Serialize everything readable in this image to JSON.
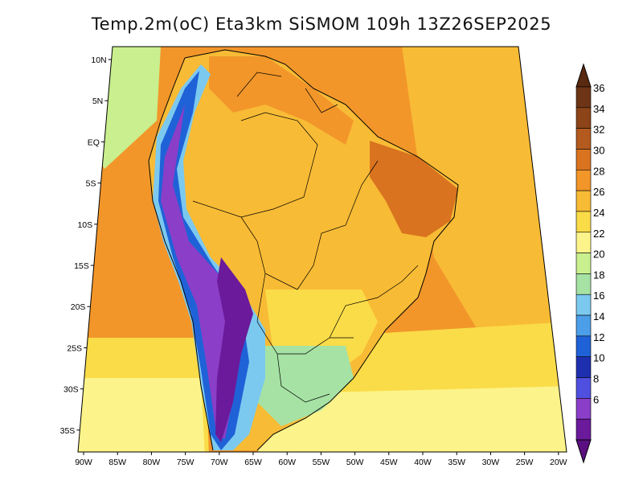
{
  "title": "Temp.2m(oC) Eta3km SiSMOM 109h 13Z26SEP2025",
  "lat_labels": [
    "10N",
    "5N",
    "EQ",
    "5S",
    "10S",
    "15S",
    "20S",
    "25S",
    "30S",
    "35S"
  ],
  "lon_labels": [
    "90W",
    "85W",
    "80W",
    "75W",
    "70W",
    "65W",
    "60W",
    "55W",
    "50W",
    "45W",
    "40W",
    "35W",
    "30W",
    "25W",
    "20W"
  ],
  "colorbar": {
    "labels": [
      "36",
      "34",
      "32",
      "30",
      "28",
      "26",
      "24",
      "22",
      "20",
      "18",
      "16",
      "14",
      "12",
      "10",
      "8",
      "6"
    ],
    "colors": [
      "#6e3416",
      "#8c4418",
      "#b45a1e",
      "#d9731f",
      "#f2962a",
      "#f8bb35",
      "#fadc48",
      "#fcf48a",
      "#c9ef8e",
      "#a6e2a4",
      "#7cc9ef",
      "#4c9ee8",
      "#1f62d8",
      "#1e2fb0",
      "#4f4fe0",
      "#8b3ec7",
      "#6a1a9a"
    ],
    "cap_top": "#5a2a10",
    "cap_bottom": "#5a1080"
  },
  "field_colors": {
    "ocean_warm": "#f2962a",
    "ocean_mild": "#f8bb35",
    "ocean_cool": "#fadc48",
    "ocean_cooler": "#fcf48a",
    "ocean_cold": "#c9ef8e",
    "land_main": "#f8bb35",
    "land_hot": "#f2962a",
    "land_hotter": "#d9731f",
    "land_cool": "#fadc48",
    "andes_high": "#6a1a9a",
    "andes_mid": "#8b3ec7",
    "andes_low": "#1f62d8",
    "slope": "#7cc9ef",
    "south_cool": "#a6e2a4"
  }
}
